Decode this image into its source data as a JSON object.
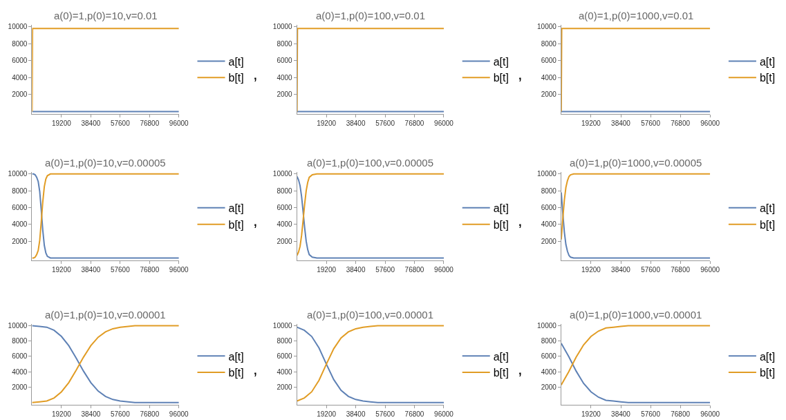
{
  "chart_data": [
    {
      "type": "line",
      "title": "a(0)=1,p(0)=10,v=0.01",
      "x": [
        0,
        300,
        96000
      ],
      "xlim": [
        0,
        96000
      ],
      "ylim": [
        -300,
        10250
      ],
      "xticks": [
        19200,
        38400,
        57600,
        76800,
        96000
      ],
      "yticks": [
        2000,
        4000,
        6000,
        8000,
        10000
      ],
      "legend": "right",
      "annotations": [
        ","
      ],
      "series": [
        {
          "name": "a[t]",
          "color": "#5e81b5",
          "values": [
            0,
            0,
            0
          ]
        },
        {
          "name": "b[t]",
          "color": "#e19c24",
          "values": [
            0,
            9800,
            9800
          ]
        }
      ]
    },
    {
      "type": "line",
      "title": "a(0)=1,p(0)=100,v=0.01",
      "x": [
        0,
        300,
        96000
      ],
      "xlim": [
        0,
        96000
      ],
      "ylim": [
        -300,
        10250
      ],
      "xticks": [
        19200,
        38400,
        57600,
        76800,
        96000
      ],
      "yticks": [
        2000,
        4000,
        6000,
        8000,
        10000
      ],
      "legend": "right",
      "annotations": [
        ","
      ],
      "series": [
        {
          "name": "a[t]",
          "color": "#5e81b5",
          "values": [
            0,
            0,
            0
          ]
        },
        {
          "name": "b[t]",
          "color": "#e19c24",
          "values": [
            0,
            9800,
            9800
          ]
        }
      ]
    },
    {
      "type": "line",
      "title": "a(0)=1,p(0)=1000,v=0.01",
      "x": [
        0,
        300,
        96000
      ],
      "xlim": [
        0,
        96000
      ],
      "ylim": [
        -300,
        10250
      ],
      "xticks": [
        19200,
        38400,
        57600,
        76800,
        96000
      ],
      "yticks": [
        2000,
        4000,
        6000,
        8000,
        10000
      ],
      "legend": "right",
      "series": [
        {
          "name": "a[t]",
          "color": "#5e81b5",
          "values": [
            0,
            0,
            0
          ]
        },
        {
          "name": "b[t]",
          "color": "#e19c24",
          "values": [
            0,
            9800,
            9800
          ]
        }
      ]
    },
    {
      "type": "line",
      "title": "a(0)=1,p(0)=10,v=0.00005",
      "x": [
        0,
        1000,
        2000,
        3000,
        4000,
        5000,
        6000,
        7000,
        8000,
        9000,
        10000,
        12000,
        15000,
        96000
      ],
      "xlim": [
        0,
        96000
      ],
      "ylim": [
        -300,
        10250
      ],
      "xticks": [
        19200,
        38400,
        57600,
        76800,
        96000
      ],
      "yticks": [
        2000,
        4000,
        6000,
        8000,
        10000
      ],
      "legend": "right",
      "annotations": [
        ","
      ],
      "series": [
        {
          "name": "a[t]",
          "color": "#5e81b5",
          "values": [
            10000,
            10000,
            9900,
            9600,
            9100,
            7900,
            5700,
            3300,
            1500,
            600,
            200,
            0,
            0,
            0
          ]
        },
        {
          "name": "b[t]",
          "color": "#e19c24",
          "values": [
            0,
            0,
            100,
            400,
            900,
            2100,
            4300,
            6700,
            8500,
            9400,
            9800,
            10000,
            10000,
            10000
          ]
        }
      ]
    },
    {
      "type": "line",
      "title": "a(0)=1,p(0)=100,v=0.00005",
      "x": [
        0,
        1000,
        2000,
        3000,
        4000,
        5000,
        6000,
        7000,
        8000,
        10000,
        13000,
        96000
      ],
      "xlim": [
        0,
        96000
      ],
      "ylim": [
        -300,
        10250
      ],
      "xticks": [
        19200,
        38400,
        57600,
        76800,
        96000
      ],
      "yticks": [
        2000,
        4000,
        6000,
        8000,
        10000
      ],
      "legend": "right",
      "annotations": [
        ","
      ],
      "series": [
        {
          "name": "a[t]",
          "color": "#5e81b5",
          "values": [
            9700,
            9300,
            8600,
            7300,
            5500,
            3600,
            2000,
            1000,
            400,
            100,
            0,
            0
          ]
        },
        {
          "name": "b[t]",
          "color": "#e19c24",
          "values": [
            300,
            700,
            1400,
            2700,
            4500,
            6400,
            8000,
            9000,
            9600,
            9900,
            10000,
            10000
          ]
        }
      ]
    },
    {
      "type": "line",
      "title": "a(0)=1,p(0)=1000,v=0.00005",
      "x": [
        0,
        1000,
        2000,
        3000,
        4000,
        5000,
        6000,
        8000,
        10000,
        96000
      ],
      "xlim": [
        0,
        96000
      ],
      "ylim": [
        -300,
        10250
      ],
      "xticks": [
        19200,
        38400,
        57600,
        76800,
        96000
      ],
      "yticks": [
        2000,
        4000,
        6000,
        8000,
        10000
      ],
      "legend": "right",
      "series": [
        {
          "name": "a[t]",
          "color": "#5e81b5",
          "values": [
            7800,
            5300,
            3100,
            1600,
            800,
            300,
            100,
            0,
            0,
            0
          ]
        },
        {
          "name": "b[t]",
          "color": "#e19c24",
          "values": [
            2200,
            4700,
            6900,
            8400,
            9200,
            9700,
            9900,
            10000,
            10000,
            10000
          ]
        }
      ]
    },
    {
      "type": "line",
      "title": "a(0)=1,p(0)=10,v=0.00001",
      "x": [
        0,
        4800,
        9600,
        14400,
        19200,
        24000,
        28800,
        33600,
        38400,
        43200,
        48000,
        52800,
        57600,
        67200,
        76800,
        96000
      ],
      "xlim": [
        0,
        96000
      ],
      "ylim": [
        -300,
        10250
      ],
      "xticks": [
        19200,
        38400,
        57600,
        76800,
        96000
      ],
      "yticks": [
        2000,
        4000,
        6000,
        8000,
        10000
      ],
      "legend": "right",
      "annotations": [
        ","
      ],
      "series": [
        {
          "name": "a[t]",
          "color": "#5e81b5",
          "values": [
            10000,
            9900,
            9800,
            9400,
            8600,
            7400,
            5800,
            4100,
            2600,
            1500,
            800,
            400,
            200,
            0,
            0,
            0
          ]
        },
        {
          "name": "b[t]",
          "color": "#e19c24",
          "values": [
            0,
            100,
            200,
            600,
            1400,
            2600,
            4200,
            5900,
            7400,
            8500,
            9200,
            9600,
            9800,
            10000,
            10000,
            10000
          ]
        }
      ]
    },
    {
      "type": "line",
      "title": "a(0)=1,p(0)=100,v=0.00001",
      "x": [
        0,
        4800,
        9600,
        14400,
        19200,
        24000,
        28800,
        33600,
        38400,
        43200,
        48000,
        52800,
        57600,
        67200,
        76800,
        96000
      ],
      "xlim": [
        0,
        96000
      ],
      "ylim": [
        -300,
        10250
      ],
      "xticks": [
        19200,
        38400,
        57600,
        76800,
        96000
      ],
      "yticks": [
        2000,
        4000,
        6000,
        8000,
        10000
      ],
      "legend": "right",
      "annotations": [
        ","
      ],
      "series": [
        {
          "name": "a[t]",
          "color": "#5e81b5",
          "values": [
            9800,
            9400,
            8600,
            7100,
            5000,
            3000,
            1600,
            800,
            400,
            200,
            100,
            0,
            0,
            0,
            0,
            0
          ]
        },
        {
          "name": "b[t]",
          "color": "#e19c24",
          "values": [
            200,
            600,
            1400,
            2900,
            5000,
            7000,
            8400,
            9200,
            9600,
            9800,
            9900,
            10000,
            10000,
            10000,
            10000,
            10000
          ]
        }
      ]
    },
    {
      "type": "line",
      "title": "a(0)=1,p(0)=1000,v=0.00001",
      "x": [
        0,
        4800,
        9600,
        14400,
        19200,
        24000,
        28800,
        33600,
        38400,
        43200,
        48000,
        52800,
        57600,
        67200,
        76800,
        96000
      ],
      "xlim": [
        0,
        96000
      ],
      "ylim": [
        -300,
        10250
      ],
      "xticks": [
        19200,
        38400,
        57600,
        76800,
        96000
      ],
      "yticks": [
        2000,
        4000,
        6000,
        8000,
        10000
      ],
      "legend": "right",
      "series": [
        {
          "name": "a[t]",
          "color": "#5e81b5",
          "values": [
            7700,
            6000,
            4100,
            2500,
            1400,
            700,
            300,
            200,
            100,
            0,
            0,
            0,
            0,
            0,
            0,
            0
          ]
        },
        {
          "name": "b[t]",
          "color": "#e19c24",
          "values": [
            2300,
            4000,
            5900,
            7500,
            8600,
            9300,
            9700,
            9800,
            9900,
            10000,
            10000,
            10000,
            10000,
            10000,
            10000,
            10000
          ]
        }
      ]
    }
  ]
}
